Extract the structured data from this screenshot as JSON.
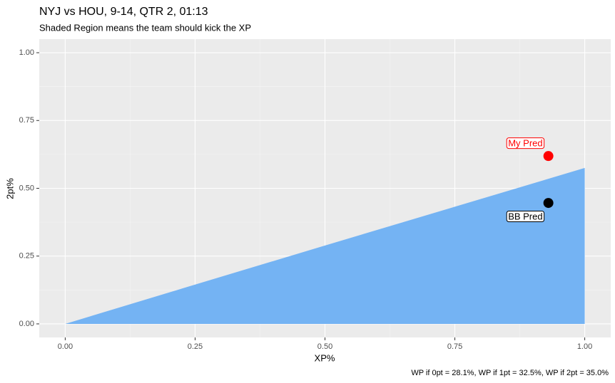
{
  "chart_data": {
    "type": "area",
    "title": "NYJ vs HOU, 9-14, QTR 2, 01:13",
    "subtitle": "Shaded Region means the team should kick the XP",
    "x_label": "XP%",
    "y_label": "2pt%",
    "caption": "WP if 0pt = 28.1%, WP if 1pt = 32.5%, WP if 2pt = 35.0%",
    "x": [
      0,
      0.25,
      0.5,
      0.75,
      1
    ],
    "values": [
      0,
      0.145,
      0.289,
      0.432,
      0.575
    ],
    "color": "#74b3f3",
    "points": [
      {
        "name": "My Pred",
        "x": 0.93,
        "y": 0.619,
        "color": "#ff0000"
      },
      {
        "name": "BB Pred",
        "x": 0.93,
        "y": 0.446,
        "color": "#000000"
      }
    ],
    "xlim": [
      -0.05,
      1.05
    ],
    "ylim": [
      -0.05,
      1.05
    ],
    "xticks": [
      {
        "value": 0,
        "label": "0.00"
      },
      {
        "value": 0.25,
        "label": "0.25"
      },
      {
        "value": 0.5,
        "label": "0.50"
      },
      {
        "value": 0.75,
        "label": "0.75"
      },
      {
        "value": 1,
        "label": "1.00"
      }
    ],
    "yticks": [
      {
        "value": 0,
        "label": "0.00"
      },
      {
        "value": 0.25,
        "label": "0.25"
      },
      {
        "value": 0.5,
        "label": "0.50"
      },
      {
        "value": 0.75,
        "label": "0.75"
      },
      {
        "value": 1,
        "label": "1.00"
      }
    ],
    "xminor": [
      0.125,
      0.375,
      0.625,
      0.875
    ],
    "yminor": [
      0.125,
      0.375,
      0.625,
      0.875
    ],
    "grid": true
  }
}
